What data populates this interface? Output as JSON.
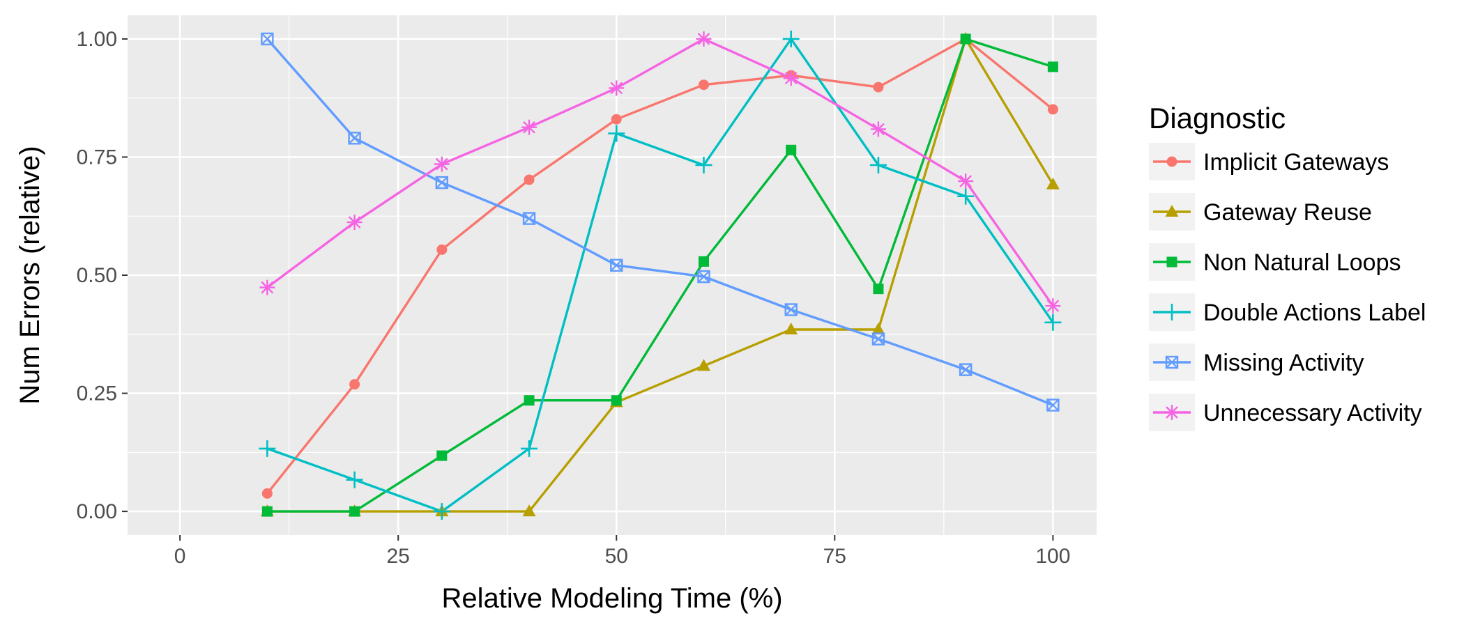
{
  "chart_data": {
    "type": "line",
    "x": [
      10,
      20,
      30,
      40,
      50,
      60,
      70,
      80,
      90,
      100
    ],
    "xlabel": "Relative Modeling Time (%)",
    "ylabel": "Num Errors (relative)",
    "xlim": [
      -6,
      105
    ],
    "ylim": [
      -0.05,
      1.05
    ],
    "xticks": [
      "0",
      "25",
      "50",
      "75",
      "100"
    ],
    "yticks": [
      "0.00",
      "0.25",
      "0.50",
      "0.75",
      "1.00"
    ],
    "grid": true,
    "legend": {
      "title": "Diagnostic",
      "placement": "right"
    },
    "series": [
      {
        "name": "Implicit Gateways",
        "color": "#F8766D",
        "shape": "circle",
        "values": [
          0.038,
          0.269,
          0.554,
          0.702,
          0.83,
          0.903,
          0.923,
          0.898,
          1.0,
          0.851
        ]
      },
      {
        "name": "Gateway Reuse",
        "color": "#B79F00",
        "shape": "triangle",
        "values": [
          0.0,
          0.0,
          0.0,
          0.0,
          0.231,
          0.308,
          0.385,
          0.385,
          1.0,
          0.692
        ]
      },
      {
        "name": "Non Natural Loops",
        "color": "#00BA38",
        "shape": "square",
        "values": [
          0.0,
          0.0,
          0.118,
          0.235,
          0.235,
          0.529,
          0.765,
          0.471,
          1.0,
          0.941
        ]
      },
      {
        "name": "Double Actions Label",
        "color": "#00BFC4",
        "shape": "plus",
        "values": [
          0.133,
          0.067,
          0.0,
          0.133,
          0.8,
          0.733,
          1.0,
          0.733,
          0.667,
          0.4
        ]
      },
      {
        "name": "Missing Activity",
        "color": "#619CFF",
        "shape": "boxcross",
        "values": [
          1.0,
          0.79,
          0.696,
          0.62,
          0.521,
          0.497,
          0.427,
          0.365,
          0.3,
          0.225
        ]
      },
      {
        "name": "Unnecessary Activity",
        "color": "#F564E3",
        "shape": "star",
        "values": [
          0.474,
          0.612,
          0.735,
          0.813,
          0.896,
          1.0,
          0.917,
          0.809,
          0.699,
          0.435
        ]
      }
    ]
  }
}
